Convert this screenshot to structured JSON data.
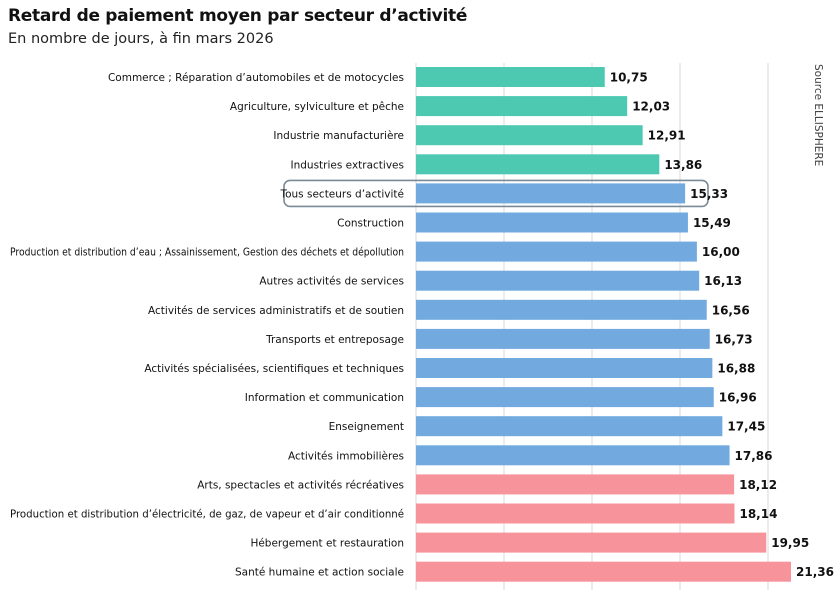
{
  "header": {
    "title": "Retard de paiement moyen par secteur d’activité",
    "subtitle": "En nombre de jours, à fin mars 2026"
  },
  "source": "Source ELLISPHERE",
  "colors": {
    "green": "#4cc9b0",
    "blue": "#72aadf",
    "pink": "#f7939a",
    "grid": "#d9d9d9",
    "highlight_border": "#7a8a96"
  },
  "chart_data": {
    "type": "bar",
    "orientation": "horizontal",
    "title": "Retard de paiement moyen par secteur d’activité",
    "subtitle": "En nombre de jours, à fin mars 2026",
    "xlim": [
      0,
      21.36
    ],
    "grid": true,
    "highlighted_category": "Tous secteurs d’activité",
    "bars": [
      {
        "label": "Commerce ; Réparation d’automobiles et de motocycles",
        "value": 10.75,
        "display": "10,75",
        "color": "green"
      },
      {
        "label": "Agriculture, sylviculture et pêche",
        "value": 12.03,
        "display": "12,03",
        "color": "green"
      },
      {
        "label": "Industrie manufacturière",
        "value": 12.91,
        "display": "12,91",
        "color": "green"
      },
      {
        "label": "Industries extractives",
        "value": 13.86,
        "display": "13,86",
        "color": "green"
      },
      {
        "label": "Tous secteurs d’activité",
        "value": 15.33,
        "display": "15,33",
        "color": "blue"
      },
      {
        "label": "Construction",
        "value": 15.49,
        "display": "15,49",
        "color": "blue"
      },
      {
        "label": "Production et distribution d’eau ; Assainissement, Gestion des déchets et dépollution",
        "value": 16.0,
        "display": "16,00",
        "color": "blue"
      },
      {
        "label": "Autres activités de services",
        "value": 16.13,
        "display": "16,13",
        "color": "blue"
      },
      {
        "label": "Activités de services administratifs et de soutien",
        "value": 16.56,
        "display": "16,56",
        "color": "blue"
      },
      {
        "label": "Transports et entreposage",
        "value": 16.73,
        "display": "16,73",
        "color": "blue"
      },
      {
        "label": "Activités spécialisées, scientifiques et techniques",
        "value": 16.88,
        "display": "16,88",
        "color": "blue"
      },
      {
        "label": "Information et communication",
        "value": 16.96,
        "display": "16,96",
        "color": "blue"
      },
      {
        "label": "Enseignement",
        "value": 17.45,
        "display": "17,45",
        "color": "blue"
      },
      {
        "label": "Activités immobilières",
        "value": 17.86,
        "display": "17,86",
        "color": "blue"
      },
      {
        "label": "Arts, spectacles et activités récréatives",
        "value": 18.12,
        "display": "18,12",
        "color": "pink"
      },
      {
        "label": "Production et distribution d’électricité, de gaz, de vapeur et d’air conditionné",
        "value": 18.14,
        "display": "18,14",
        "color": "pink"
      },
      {
        "label": "Hébergement et restauration",
        "value": 19.95,
        "display": "19,95",
        "color": "pink"
      },
      {
        "label": "Santé humaine et action sociale",
        "value": 21.36,
        "display": "21,36",
        "color": "pink"
      }
    ]
  }
}
